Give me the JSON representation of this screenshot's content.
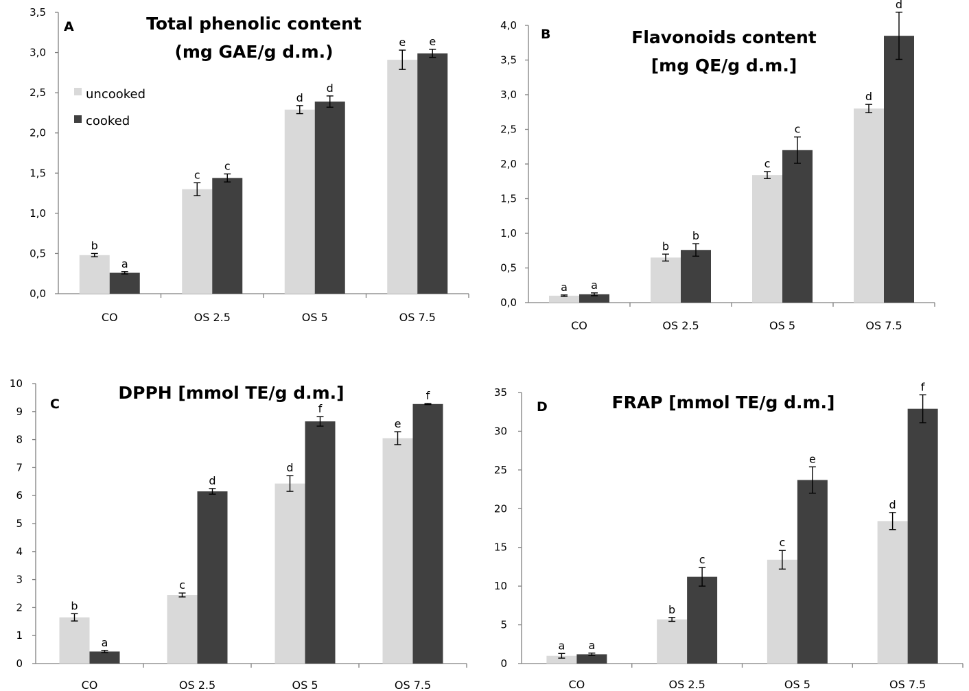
{
  "legend": {
    "uncooked_label": "uncooked",
    "cooked_label": "cooked"
  },
  "colors": {
    "uncooked": "#d9d9d9",
    "cooked": "#404040",
    "axis": "#7f7f7f"
  },
  "chart_data": [
    {
      "panel": "A",
      "type": "bar",
      "title": [
        "Total phenolic content",
        "(mg GAE/g d.m.)"
      ],
      "categories": [
        "CO",
        "OS 2.5",
        "OS 5",
        "OS 7.5"
      ],
      "ylim": [
        0,
        3.5
      ],
      "yticks": [
        "0,0",
        "0,5",
        "1,0",
        "1,5",
        "2,0",
        "2,5",
        "3,0",
        "3,5"
      ],
      "legend": "top-left",
      "series": [
        {
          "name": "uncooked",
          "values": [
            0.48,
            1.3,
            2.29,
            2.91
          ],
          "errors": [
            0.02,
            0.08,
            0.05,
            0.12
          ],
          "labels": [
            "b",
            "c",
            "d",
            "e"
          ]
        },
        {
          "name": "cooked",
          "values": [
            0.26,
            1.44,
            2.39,
            2.99
          ],
          "errors": [
            0.015,
            0.05,
            0.07,
            0.05
          ],
          "labels": [
            "a",
            "c",
            "d",
            "e"
          ]
        }
      ]
    },
    {
      "panel": "B",
      "type": "bar",
      "title": [
        "Flavonoids content",
        "[mg QE/g d.m.]"
      ],
      "categories": [
        "CO",
        "OS 2.5",
        "OS 5",
        "OS 7.5"
      ],
      "ylim": [
        0,
        4.0
      ],
      "yticks": [
        "0,0",
        "0,5",
        "1,0",
        "1,5",
        "2,0",
        "2,5",
        "3,0",
        "3,5",
        "4,0"
      ],
      "series": [
        {
          "name": "uncooked",
          "values": [
            0.1,
            0.65,
            1.84,
            2.8
          ],
          "errors": [
            0.01,
            0.05,
            0.05,
            0.06
          ],
          "labels": [
            "a",
            "b",
            "c",
            "d"
          ]
        },
        {
          "name": "cooked",
          "values": [
            0.12,
            0.76,
            2.2,
            3.85
          ],
          "errors": [
            0.02,
            0.09,
            0.19,
            0.34
          ],
          "labels": [
            "a",
            "b",
            "c",
            "d"
          ]
        }
      ]
    },
    {
      "panel": "C",
      "type": "bar",
      "title": [
        "DPPH [mmol TE/g d.m.]"
      ],
      "categories": [
        "CO",
        "OS 2.5",
        "OS 5",
        "OS 7.5"
      ],
      "ylim": [
        0,
        10
      ],
      "yticks": [
        "0",
        "1",
        "2",
        "3",
        "4",
        "5",
        "6",
        "7",
        "8",
        "9",
        "10"
      ],
      "series": [
        {
          "name": "uncooked",
          "values": [
            1.65,
            2.45,
            6.43,
            8.05
          ],
          "errors": [
            0.13,
            0.07,
            0.28,
            0.23
          ],
          "labels": [
            "b",
            "c",
            "d",
            "e"
          ]
        },
        {
          "name": "cooked",
          "values": [
            0.43,
            6.15,
            8.65,
            9.27
          ],
          "errors": [
            0.04,
            0.1,
            0.17,
            0.02
          ],
          "labels": [
            "a",
            "d",
            "f",
            "f"
          ]
        }
      ]
    },
    {
      "panel": "D",
      "type": "bar",
      "title": [
        "FRAP [mmol TE/g d.m.]"
      ],
      "categories": [
        "CO",
        "OS 2.5",
        "OS 5",
        "OS 7.5"
      ],
      "ylim": [
        0,
        35
      ],
      "yticks": [
        "0",
        "5",
        "10",
        "15",
        "20",
        "25",
        "30",
        "35"
      ],
      "series": [
        {
          "name": "uncooked",
          "values": [
            1.0,
            5.7,
            13.4,
            18.4
          ],
          "errors": [
            0.3,
            0.25,
            1.2,
            1.1
          ],
          "labels": [
            "a",
            "b",
            "c",
            "d"
          ]
        },
        {
          "name": "cooked",
          "values": [
            1.2,
            11.2,
            23.7,
            32.9
          ],
          "errors": [
            0.15,
            1.2,
            1.7,
            1.8
          ],
          "labels": [
            "a",
            "c",
            "e",
            "f"
          ]
        }
      ]
    }
  ]
}
